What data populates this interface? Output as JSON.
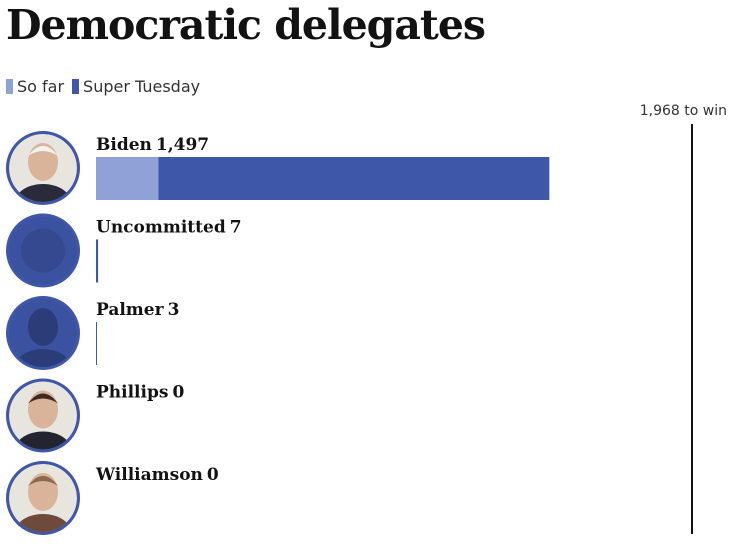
{
  "title": "Democratic delegates",
  "legend": [
    {
      "label": "So far",
      "color": "#8fa1d6"
    },
    {
      "label": "Super Tuesday",
      "color": "#3f57a8"
    }
  ],
  "chart_data": {
    "type": "bar",
    "title": "Democratic delegates",
    "orientation": "horizontal",
    "stacked": true,
    "win_threshold": 1968,
    "win_label": "1,968 to win",
    "candidates": [
      {
        "name": "Biden",
        "total_label": "1,497",
        "so_far": 206,
        "super_tuesday": 1291,
        "total": 1497
      },
      {
        "name": "Uncommitted",
        "total_label": "7",
        "so_far": 0,
        "super_tuesday": 7,
        "total": 7
      },
      {
        "name": "Palmer",
        "total_label": "3",
        "so_far": 0,
        "super_tuesday": 3,
        "total": 3
      },
      {
        "name": "Phillips",
        "total_label": "0",
        "so_far": 0,
        "super_tuesday": 0,
        "total": 0
      },
      {
        "name": "Williamson",
        "total_label": "0",
        "so_far": 0,
        "super_tuesday": 0,
        "total": 0
      }
    ],
    "series": [
      {
        "name": "So far",
        "color": "#8fa1d6"
      },
      {
        "name": "Super Tuesday",
        "color": "#3f57a8"
      }
    ],
    "xlim": [
      0,
      1968
    ]
  }
}
